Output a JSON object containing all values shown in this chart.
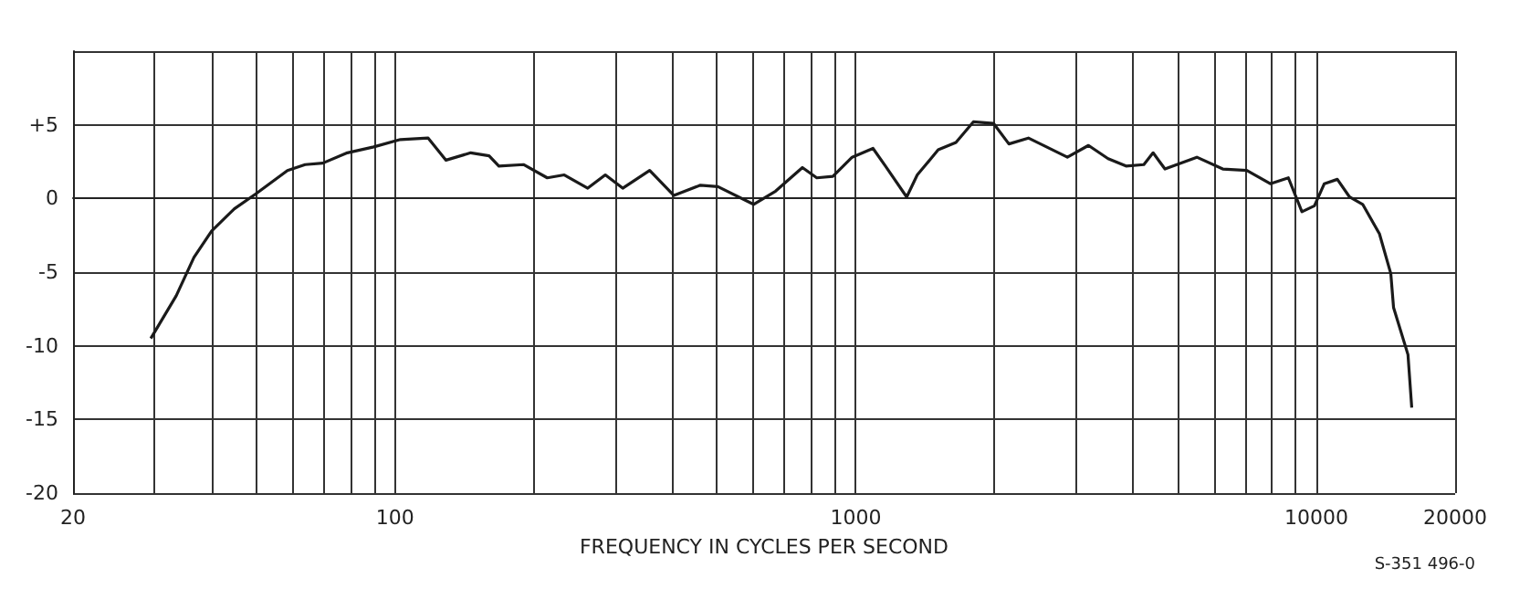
{
  "chart_data": {
    "type": "line",
    "xlabel": "FREQUENCY IN CYCLES PER SECOND",
    "annotations": [
      "S-351 496-0"
    ],
    "log": "x",
    "grid": true,
    "marker": "none",
    "line_style": "solid",
    "xlim": [
      20,
      20000
    ],
    "xticks": [
      20,
      {
        "value": 30,
        "label": null
      },
      {
        "value": 40,
        "label": null
      },
      {
        "value": 50,
        "label": null
      },
      {
        "value": 60,
        "label": null
      },
      {
        "value": 70,
        "label": null
      },
      {
        "value": 80,
        "label": null
      },
      {
        "value": 90,
        "label": null
      },
      100,
      {
        "value": 200,
        "label": null
      },
      {
        "value": 300,
        "label": null
      },
      {
        "value": 400,
        "label": null
      },
      {
        "value": 500,
        "label": null
      },
      {
        "value": 600,
        "label": null
      },
      {
        "value": 700,
        "label": null
      },
      {
        "value": 800,
        "label": null
      },
      {
        "value": 900,
        "label": null
      },
      1000,
      {
        "value": 2000,
        "label": null
      },
      {
        "value": 3000,
        "label": null
      },
      {
        "value": 4000,
        "label": null
      },
      {
        "value": 5000,
        "label": null
      },
      {
        "value": 6000,
        "label": null
      },
      {
        "value": 7000,
        "label": null
      },
      {
        "value": 8000,
        "label": null
      },
      {
        "value": 9000,
        "label": null
      },
      10000,
      20000
    ],
    "ylim": [
      -20,
      10
    ],
    "yticks": [
      -20,
      -15,
      -10,
      -5,
      0,
      {
        "value": 5,
        "label": "+5"
      },
      {
        "value": 10,
        "label": null
      }
    ],
    "series": [
      {
        "color": "#1a1a1a",
        "x": [
          29.5,
          33.5,
          36.6,
          40,
          44.8,
          49.8,
          58.4,
          63.8,
          69.7,
          78.8,
          89.9,
          102.7,
          118,
          129,
          146,
          160,
          168,
          190,
          214,
          233,
          262,
          286,
          312,
          357,
          403,
          460,
          502,
          600,
          670,
          766,
          823,
          892,
          982,
          1090,
          1160,
          1290,
          1360,
          1510,
          1650,
          1800,
          1990,
          2150,
          2370,
          2880,
          3200,
          3530,
          3860,
          4220,
          4420,
          4690,
          5500,
          6260,
          7060,
          7940,
          8690,
          9300,
          9900,
          10400,
          11100,
          11800,
          12600,
          13700,
          14500,
          14700,
          15800,
          16100
        ],
        "values": [
          -9.5,
          -6.6,
          -4.0,
          -2.2,
          -0.7,
          0.3,
          1.9,
          2.3,
          2.4,
          3.1,
          3.5,
          4.0,
          4.1,
          2.6,
          3.1,
          2.9,
          2.2,
          2.3,
          1.4,
          1.6,
          0.7,
          1.6,
          0.7,
          1.9,
          0.2,
          0.9,
          0.8,
          -0.4,
          0.5,
          2.1,
          1.4,
          1.5,
          2.8,
          3.4,
          2.2,
          0.1,
          1.6,
          3.3,
          3.8,
          5.2,
          5.1,
          3.7,
          4.1,
          2.8,
          3.6,
          2.7,
          2.2,
          2.3,
          3.1,
          2.0,
          2.8,
          2.0,
          1.9,
          1.0,
          1.4,
          -0.9,
          -0.5,
          1.0,
          1.3,
          0.1,
          -0.4,
          -2.4,
          -5.1,
          -7.4,
          -10.6,
          -14.2
        ]
      }
    ]
  }
}
